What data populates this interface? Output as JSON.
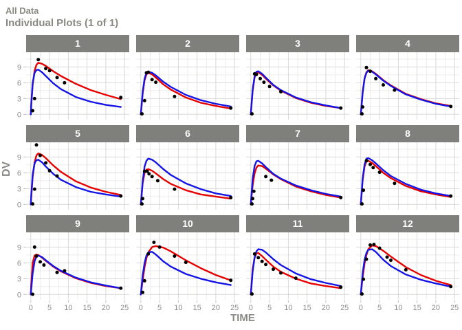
{
  "header": {
    "title_line1": "All Data",
    "title_line2": "Individual Plots (1 of 1)"
  },
  "axes": {
    "x_label": "TIME",
    "y_label": "DV",
    "x_ticks": [
      0,
      5,
      10,
      15,
      20,
      25
    ],
    "y_ticks": [
      0,
      3,
      6,
      9
    ]
  },
  "colors": {
    "red_line": "#e60000",
    "blue_line": "#1414e6",
    "point": "#000000",
    "strip_bg": "#7f7f7c",
    "strip_text": "#ffffff",
    "grid_major": "#d8d8d6",
    "grid_minor": "#ececea",
    "tick_text": "#8c8c8c",
    "tick_mark": "#bdbdbd"
  },
  "chart_data": {
    "type": "line",
    "title": "Individual Plots (1 of 1)",
    "xlabel": "TIME",
    "ylabel": "DV",
    "x_domain": [
      -1.25,
      26.25
    ],
    "y_domain": [
      -1.0,
      11.8
    ],
    "x_ticks": [
      0,
      5,
      10,
      15,
      20,
      25
    ],
    "x_minor": [
      2.5,
      7.5,
      12.5,
      17.5,
      22.5
    ],
    "y_ticks": [
      0,
      3,
      6,
      9
    ],
    "y_minor": [
      1.5,
      4.5,
      7.5,
      10.5
    ],
    "legend": "none",
    "series_names": [
      "red_curve",
      "blue_curve",
      "observed_points"
    ],
    "t": [
      0,
      0.1,
      0.5,
      1,
      1.5,
      2,
      3,
      4,
      6,
      8,
      12,
      16,
      20,
      24
    ],
    "facets": [
      {
        "label": "1",
        "red": [
          0,
          1.6,
          5.6,
          8.3,
          9.4,
          9.8,
          9.6,
          9.2,
          8.2,
          7.3,
          5.8,
          4.6,
          3.7,
          2.9
        ],
        "blue": [
          0,
          1.9,
          5.9,
          7.9,
          8.4,
          8.5,
          8.0,
          7.3,
          5.9,
          4.8,
          3.3,
          2.4,
          1.8,
          1.4
        ],
        "obs": [
          [
            0.5,
            0.7
          ],
          [
            1,
            3.0
          ],
          [
            2,
            10.4
          ],
          [
            4,
            8.7
          ],
          [
            5,
            8.3
          ],
          [
            7,
            7.0
          ],
          [
            9,
            6.0
          ],
          [
            24,
            3.2
          ]
        ]
      },
      {
        "label": "2",
        "red": [
          0,
          0.8,
          3.9,
          6.5,
          7.6,
          7.9,
          7.6,
          7.0,
          5.7,
          4.7,
          3.2,
          2.2,
          1.6,
          1.1
        ],
        "blue": [
          0,
          0.9,
          4.2,
          6.8,
          7.9,
          8.1,
          7.9,
          7.4,
          6.2,
          5.2,
          3.7,
          2.7,
          2.0,
          1.5
        ],
        "obs": [
          [
            0.3,
            0.1
          ],
          [
            1,
            2.6
          ],
          [
            1.5,
            7.9
          ],
          [
            2,
            8.0
          ],
          [
            3,
            6.6
          ],
          [
            4,
            6.1
          ],
          [
            9,
            3.4
          ],
          [
            24,
            1.2
          ]
        ]
      },
      {
        "label": "3",
        "red": [
          0,
          1.0,
          4.5,
          7.0,
          7.9,
          8.0,
          7.5,
          6.8,
          5.5,
          4.5,
          3.1,
          2.2,
          1.6,
          1.2
        ],
        "blue": [
          0,
          1.1,
          4.7,
          7.2,
          8.1,
          8.2,
          7.7,
          7.0,
          5.6,
          4.6,
          3.2,
          2.3,
          1.7,
          1.2
        ],
        "obs": [
          [
            0.3,
            0.1
          ],
          [
            1,
            7.7
          ],
          [
            1.5,
            7.6
          ],
          [
            2.5,
            6.8
          ],
          [
            3.5,
            6.1
          ],
          [
            5,
            5.3
          ],
          [
            8,
            4.3
          ],
          [
            24,
            1.2
          ]
        ]
      },
      {
        "label": "4",
        "red": [
          0,
          0.9,
          4.2,
          6.9,
          8.0,
          8.4,
          8.2,
          7.7,
          6.5,
          5.5,
          3.9,
          2.9,
          2.1,
          1.6
        ],
        "blue": [
          0,
          0.8,
          4.1,
          6.8,
          7.9,
          8.3,
          8.1,
          7.6,
          6.4,
          5.4,
          3.8,
          2.8,
          2.0,
          1.5
        ],
        "obs": [
          [
            0.3,
            0.1
          ],
          [
            0.5,
            1.4
          ],
          [
            1.5,
            8.9
          ],
          [
            2.5,
            8.2
          ],
          [
            4,
            6.8
          ],
          [
            6,
            5.6
          ],
          [
            9,
            4.6
          ],
          [
            24,
            1.5
          ]
        ]
      },
      {
        "label": "5",
        "red": [
          0,
          1.3,
          5.2,
          8.0,
          9.3,
          9.7,
          9.4,
          8.8,
          7.4,
          6.2,
          4.4,
          3.2,
          2.4,
          1.8
        ],
        "blue": [
          0,
          1.7,
          5.6,
          7.8,
          8.4,
          8.5,
          8.0,
          7.2,
          5.8,
          4.7,
          3.3,
          2.4,
          1.9,
          1.5
        ],
        "obs": [
          [
            0.5,
            0.1
          ],
          [
            1,
            2.9
          ],
          [
            1.5,
            11.3
          ],
          [
            2.5,
            9.3
          ],
          [
            4,
            7.9
          ],
          [
            5,
            6.4
          ],
          [
            7,
            5.4
          ],
          [
            24,
            1.6
          ]
        ]
      },
      {
        "label": "6",
        "red": [
          0,
          0.9,
          4.0,
          6.0,
          6.6,
          6.7,
          6.4,
          5.9,
          4.8,
          3.9,
          2.7,
          1.9,
          1.5,
          1.1
        ],
        "blue": [
          0,
          0.8,
          4.3,
          7.2,
          8.3,
          8.7,
          8.5,
          8.0,
          6.7,
          5.6,
          4.0,
          2.9,
          2.1,
          1.6
        ],
        "obs": [
          [
            0.3,
            0.1
          ],
          [
            0.5,
            1.1
          ],
          [
            1,
            6.3
          ],
          [
            1.7,
            6.3
          ],
          [
            2.2,
            5.8
          ],
          [
            3,
            5.3
          ],
          [
            4.5,
            4.5
          ],
          [
            9,
            2.9
          ],
          [
            24,
            1.3
          ]
        ]
      },
      {
        "label": "7",
        "red": [
          0,
          0.8,
          3.6,
          5.9,
          7.0,
          7.4,
          7.3,
          6.8,
          5.7,
          4.8,
          3.4,
          2.5,
          1.8,
          1.3
        ],
        "blue": [
          0,
          1.2,
          4.9,
          7.3,
          8.2,
          8.3,
          7.8,
          7.1,
          5.8,
          4.9,
          3.6,
          2.7,
          2.0,
          1.5
        ],
        "obs": [
          [
            0.3,
            0.1
          ],
          [
            0.5,
            1.1
          ],
          [
            0.8,
            2.5
          ],
          [
            4,
            5.3
          ],
          [
            5.5,
            4.6
          ],
          [
            24,
            1.3
          ]
        ]
      },
      {
        "label": "8",
        "red": [
          0,
          1.0,
          4.6,
          7.2,
          8.2,
          8.3,
          7.9,
          7.3,
          6.0,
          5.0,
          3.5,
          2.5,
          1.9,
          1.4
        ],
        "blue": [
          0,
          1.1,
          4.9,
          7.6,
          8.7,
          8.8,
          8.4,
          7.8,
          6.5,
          5.4,
          3.9,
          2.8,
          2.1,
          1.6
        ],
        "obs": [
          [
            0.3,
            0.1
          ],
          [
            0.7,
            2.7
          ],
          [
            1.5,
            8.3
          ],
          [
            2.5,
            7.6
          ],
          [
            3.3,
            7.0
          ],
          [
            5,
            6.1
          ],
          [
            9,
            4.0
          ],
          [
            24,
            1.6
          ]
        ]
      },
      {
        "label": "9",
        "red": [
          0,
          1.9,
          6.0,
          7.4,
          7.6,
          7.5,
          7.0,
          6.4,
          5.3,
          4.4,
          3.1,
          2.2,
          1.6,
          1.2
        ],
        "blue": [
          0,
          0.9,
          4.0,
          6.3,
          7.2,
          7.4,
          7.1,
          6.5,
          5.4,
          4.5,
          3.2,
          2.3,
          1.7,
          1.2
        ],
        "obs": [
          [
            0.5,
            0.05
          ],
          [
            1,
            9.0
          ],
          [
            1.5,
            7.3
          ],
          [
            2.5,
            6.2
          ],
          [
            3.5,
            5.6
          ],
          [
            7,
            4.2
          ],
          [
            9,
            4.5
          ],
          [
            24,
            1.2
          ]
        ]
      },
      {
        "label": "10",
        "red": [
          0,
          0.5,
          2.7,
          5.2,
          6.9,
          8.0,
          9.0,
          9.2,
          8.9,
          8.2,
          6.5,
          5.0,
          3.7,
          2.7
        ],
        "blue": [
          0,
          0.8,
          3.6,
          6.0,
          7.4,
          8.0,
          8.1,
          7.6,
          6.3,
          5.3,
          3.9,
          3.0,
          2.3,
          1.8
        ],
        "obs": [
          [
            0.5,
            0.4
          ],
          [
            1,
            2.6
          ],
          [
            2,
            7.7
          ],
          [
            3.5,
            9.9
          ],
          [
            5,
            9.0
          ],
          [
            9,
            7.3
          ],
          [
            12,
            6.1
          ],
          [
            24,
            2.7
          ]
        ]
      },
      {
        "label": "11",
        "red": [
          0,
          1.1,
          4.8,
          7.0,
          7.8,
          7.9,
          7.3,
          6.6,
          5.3,
          4.3,
          3.0,
          2.1,
          1.6,
          1.2
        ],
        "blue": [
          0,
          0.9,
          4.4,
          7.0,
          8.2,
          8.6,
          8.5,
          8.0,
          6.7,
          5.6,
          4.0,
          2.9,
          2.2,
          1.6
        ],
        "obs": [
          [
            0.3,
            0.1
          ],
          [
            1,
            7.7
          ],
          [
            2,
            7.0
          ],
          [
            3,
            6.3
          ],
          [
            4,
            5.7
          ],
          [
            6,
            4.8
          ],
          [
            8,
            4.1
          ],
          [
            12,
            3.1
          ],
          [
            24,
            1.4
          ]
        ]
      },
      {
        "label": "12",
        "red": [
          0,
          0.7,
          3.3,
          5.9,
          7.5,
          8.6,
          9.3,
          9.2,
          8.3,
          7.2,
          5.2,
          3.7,
          2.6,
          1.8
        ],
        "blue": [
          0,
          0.9,
          4.0,
          6.6,
          7.9,
          8.5,
          8.6,
          8.1,
          6.6,
          5.4,
          3.8,
          2.8,
          2.1,
          1.5
        ],
        "obs": [
          [
            0.3,
            0.1
          ],
          [
            0.7,
            2.9
          ],
          [
            1.5,
            6.7
          ],
          [
            2.5,
            9.4
          ],
          [
            3.5,
            9.5
          ],
          [
            5,
            8.8
          ],
          [
            7,
            7.1
          ],
          [
            8,
            6.5
          ],
          [
            12,
            4.7
          ],
          [
            24,
            1.5
          ]
        ]
      }
    ]
  }
}
